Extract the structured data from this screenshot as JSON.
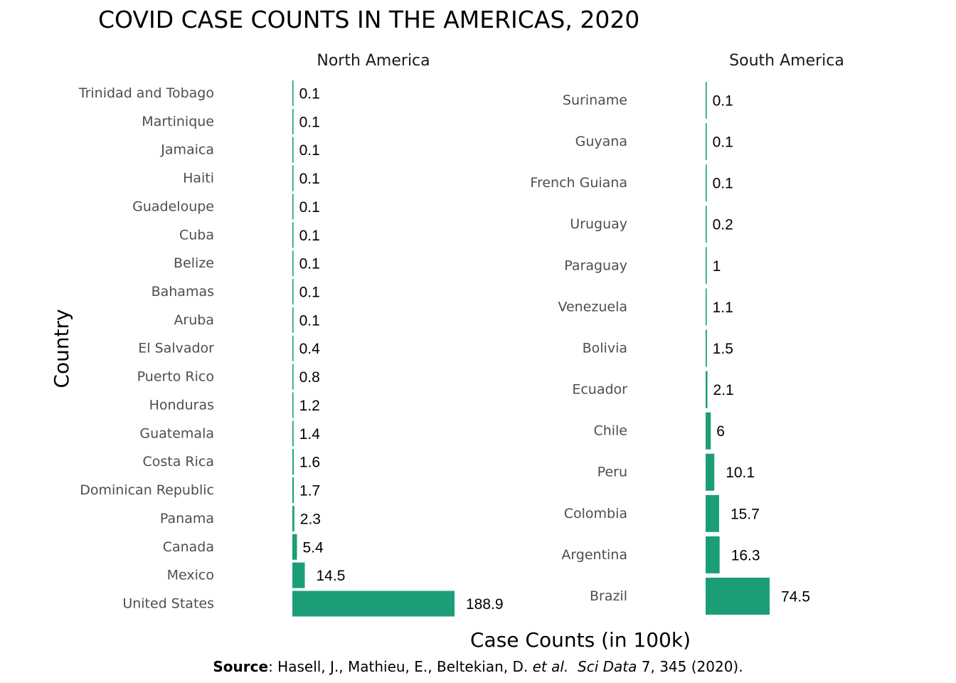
{
  "chart_data": {
    "type": "bar",
    "title": "COVID CASE COUNTS IN THE AMERICAS, 2020",
    "xlabel": "Case Counts (in 100k)",
    "ylabel": "Country",
    "bar_color": "#1b9e77",
    "grid": false,
    "orientation": "horizontal",
    "panels": [
      {
        "name": "North America",
        "categories": [
          "Trinidad and Tobago",
          "Martinique",
          "Jamaica",
          "Haiti",
          "Guadeloupe",
          "Cuba",
          "Belize",
          "Bahamas",
          "Aruba",
          "El Salvador",
          "Puerto Rico",
          "Honduras",
          "Guatemala",
          "Costa Rica",
          "Dominican Republic",
          "Panama",
          "Canada",
          "Mexico",
          "United States"
        ],
        "values": [
          0.1,
          0.1,
          0.1,
          0.1,
          0.1,
          0.1,
          0.1,
          0.1,
          0.1,
          0.4,
          0.8,
          1.2,
          1.4,
          1.6,
          1.7,
          2.3,
          5.4,
          14.5,
          188.9
        ],
        "value_labels": [
          "0.1",
          "0.1",
          "0.1",
          "0.1",
          "0.1",
          "0.1",
          "0.1",
          "0.1",
          "0.1",
          "0.4",
          "0.8",
          "1.2",
          "1.4",
          "1.6",
          "1.7",
          "2.3",
          "5.4",
          "14.5",
          "188.9"
        ]
      },
      {
        "name": "South America",
        "categories": [
          "Suriname",
          "Guyana",
          "French Guiana",
          "Uruguay",
          "Paraguay",
          "Venezuela",
          "Bolivia",
          "Ecuador",
          "Chile",
          "Peru",
          "Colombia",
          "Argentina",
          "Brazil"
        ],
        "values": [
          0.1,
          0.1,
          0.1,
          0.2,
          1,
          1.1,
          1.5,
          2.1,
          6,
          10.1,
          15.7,
          16.3,
          74.5
        ],
        "value_labels": [
          "0.1",
          "0.1",
          "0.1",
          "0.2",
          "1",
          "1.1",
          "1.5",
          "2.1",
          "6",
          "10.1",
          "15.7",
          "16.3",
          "74.5"
        ]
      }
    ]
  },
  "source": {
    "bold": "Source",
    "text1": ": Hasell, J., Mathieu, E., Beltekian, D. ",
    "etal": "et al.",
    "text2": "  ",
    "journal": "Sci Data",
    "text3": " 7, 345 (2020)."
  }
}
